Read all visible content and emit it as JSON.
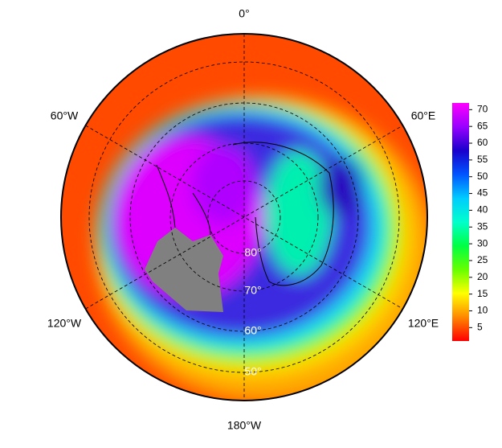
{
  "map": {
    "type": "polar-stereographic",
    "longitude_labels": [
      "0°",
      "60°E",
      "120°E",
      "180°W",
      "120°W",
      "60°W"
    ],
    "latitude_labels": [
      "80°",
      "70°",
      "60°",
      "50°"
    ],
    "colorbar": {
      "lim": [
        1,
        72
      ],
      "ticks": [
        5,
        10,
        15,
        20,
        25,
        30,
        35,
        40,
        45,
        50,
        55,
        60,
        65,
        70
      ],
      "colors": [
        "#ff0000",
        "#ff8800",
        "#ffff00",
        "#66ff00",
        "#00ff44",
        "#00ffcc",
        "#00ccff",
        "#0055ff",
        "#1a00cc",
        "#9900ff",
        "#ff00ff"
      ]
    }
  }
}
